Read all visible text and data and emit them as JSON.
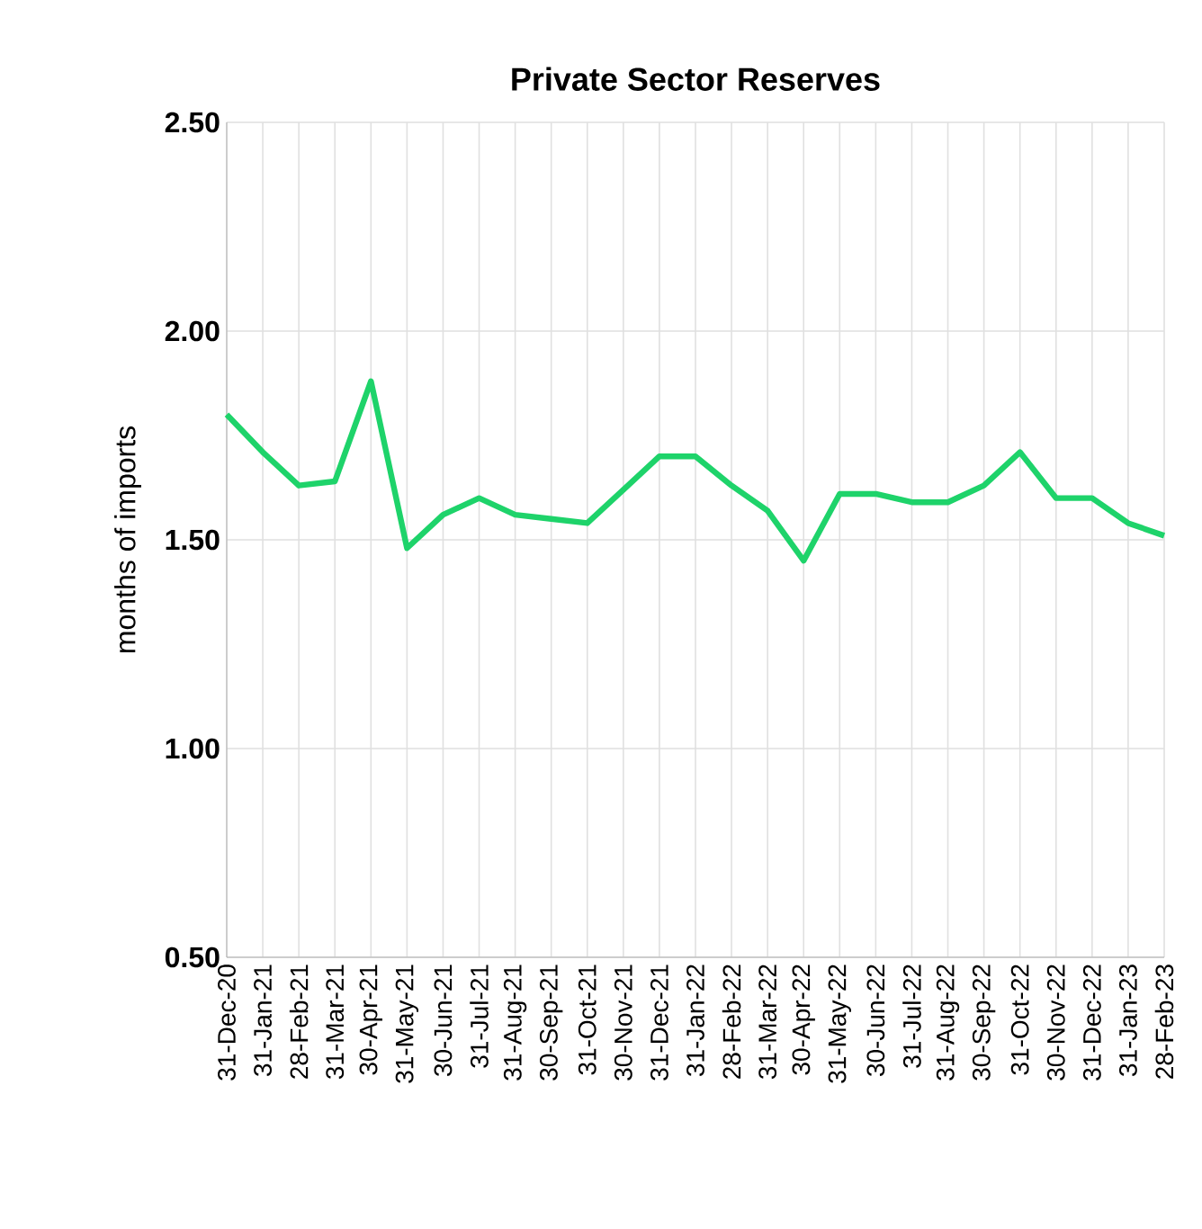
{
  "chart_data": {
    "type": "line",
    "title": "Private Sector Reserves",
    "ylabel": "months of imports",
    "categories": [
      "31-Dec-20",
      "31-Jan-21",
      "28-Feb-21",
      "31-Mar-21",
      "30-Apr-21",
      "31-May-21",
      "30-Jun-21",
      "31-Jul-21",
      "31-Aug-21",
      "30-Sep-21",
      "31-Oct-21",
      "30-Nov-21",
      "31-Dec-21",
      "31-Jan-22",
      "28-Feb-22",
      "31-Mar-22",
      "30-Apr-22",
      "31-May-22",
      "30-Jun-22",
      "31-Jul-22",
      "31-Aug-22",
      "30-Sep-22",
      "31-Oct-22",
      "30-Nov-22",
      "31-Dec-22",
      "31-Jan-23",
      "28-Feb-23"
    ],
    "series": [
      {
        "color": "#1ed36a",
        "values": [
          1.8,
          1.71,
          1.63,
          1.64,
          1.88,
          1.48,
          1.56,
          1.6,
          1.56,
          1.55,
          1.54,
          1.62,
          1.7,
          1.7,
          1.63,
          1.57,
          1.45,
          1.61,
          1.61,
          1.59,
          1.59,
          1.63,
          1.71,
          1.6,
          1.6,
          1.54,
          1.51
        ]
      }
    ],
    "ylim": [
      0.5,
      2.5
    ],
    "yticks": [
      {
        "value": 0.5,
        "label": "0.50"
      },
      {
        "value": 1,
        "label": "1.00"
      },
      {
        "value": 1.5,
        "label": "1.50"
      },
      {
        "value": 2,
        "label": "2.00"
      },
      {
        "value": 2.5,
        "label": "2.50"
      }
    ],
    "grid": true,
    "marker": "none",
    "line_style": "solid"
  }
}
